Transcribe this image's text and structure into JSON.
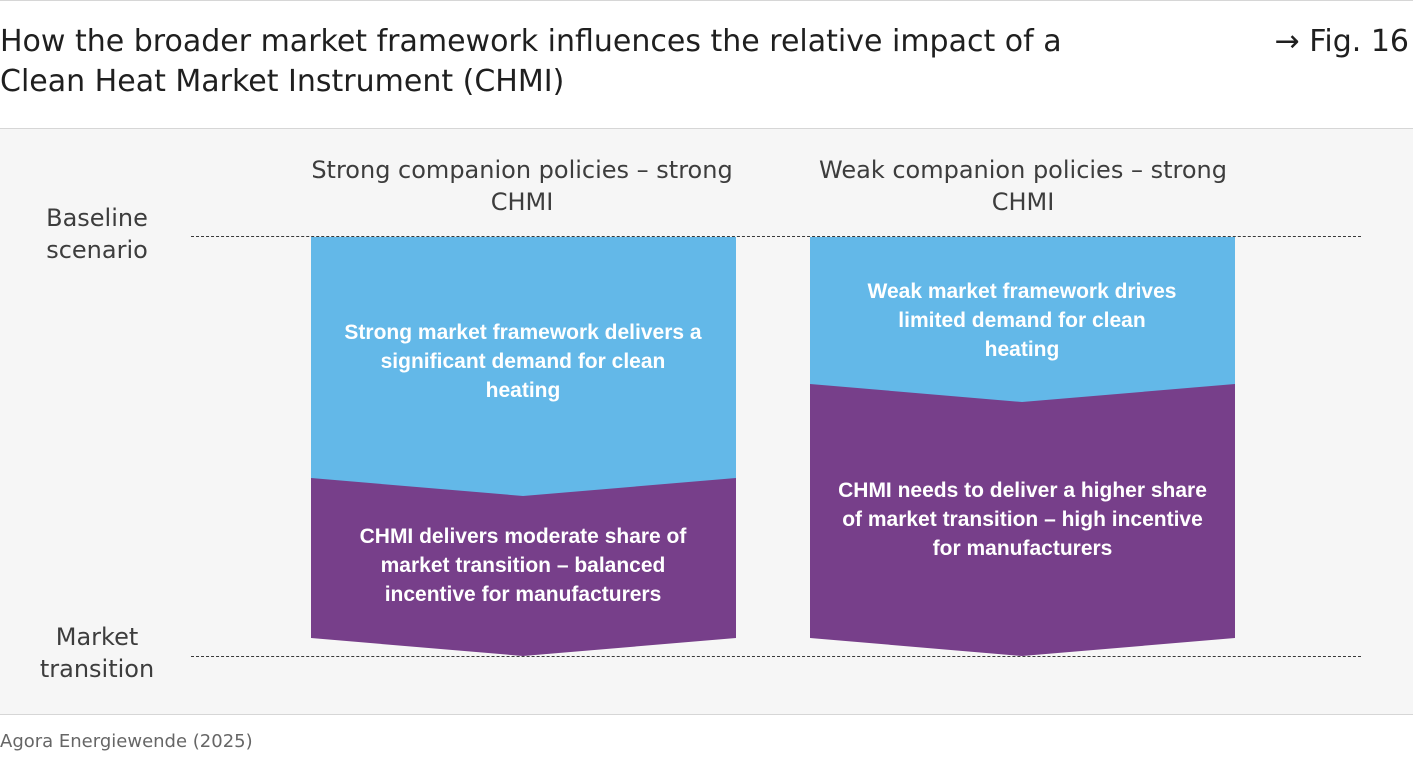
{
  "header": {
    "title": "How the broader market framework influences the relative impact of a Clean Heat Market Instrument (CHMI)",
    "figure_ref": "→ Fig. 16"
  },
  "row_labels": {
    "top": "Baseline scenario",
    "bottom": "Market transition"
  },
  "columns": [
    {
      "heading": "Strong companion policies – strong CHMI",
      "upper_box": {
        "text": "Strong market framework delivers a significant demand for clean heating",
        "color": "#63b8e8"
      },
      "lower_box": {
        "text": "CHMI delivers moderate share of market transition – balanced incentive for manufacturers",
        "color": "#773f8a"
      }
    },
    {
      "heading": "Weak companion policies – strong CHMI",
      "upper_box": {
        "text": "Weak market framework drives limited demand for clean heating",
        "color": "#63b8e8"
      },
      "lower_box": {
        "text": "CHMI needs to deliver a higher share of market transition – high incentive for manufacturers",
        "color": "#773f8a"
      }
    }
  ],
  "source": "Agora Energiewende (2025)"
}
